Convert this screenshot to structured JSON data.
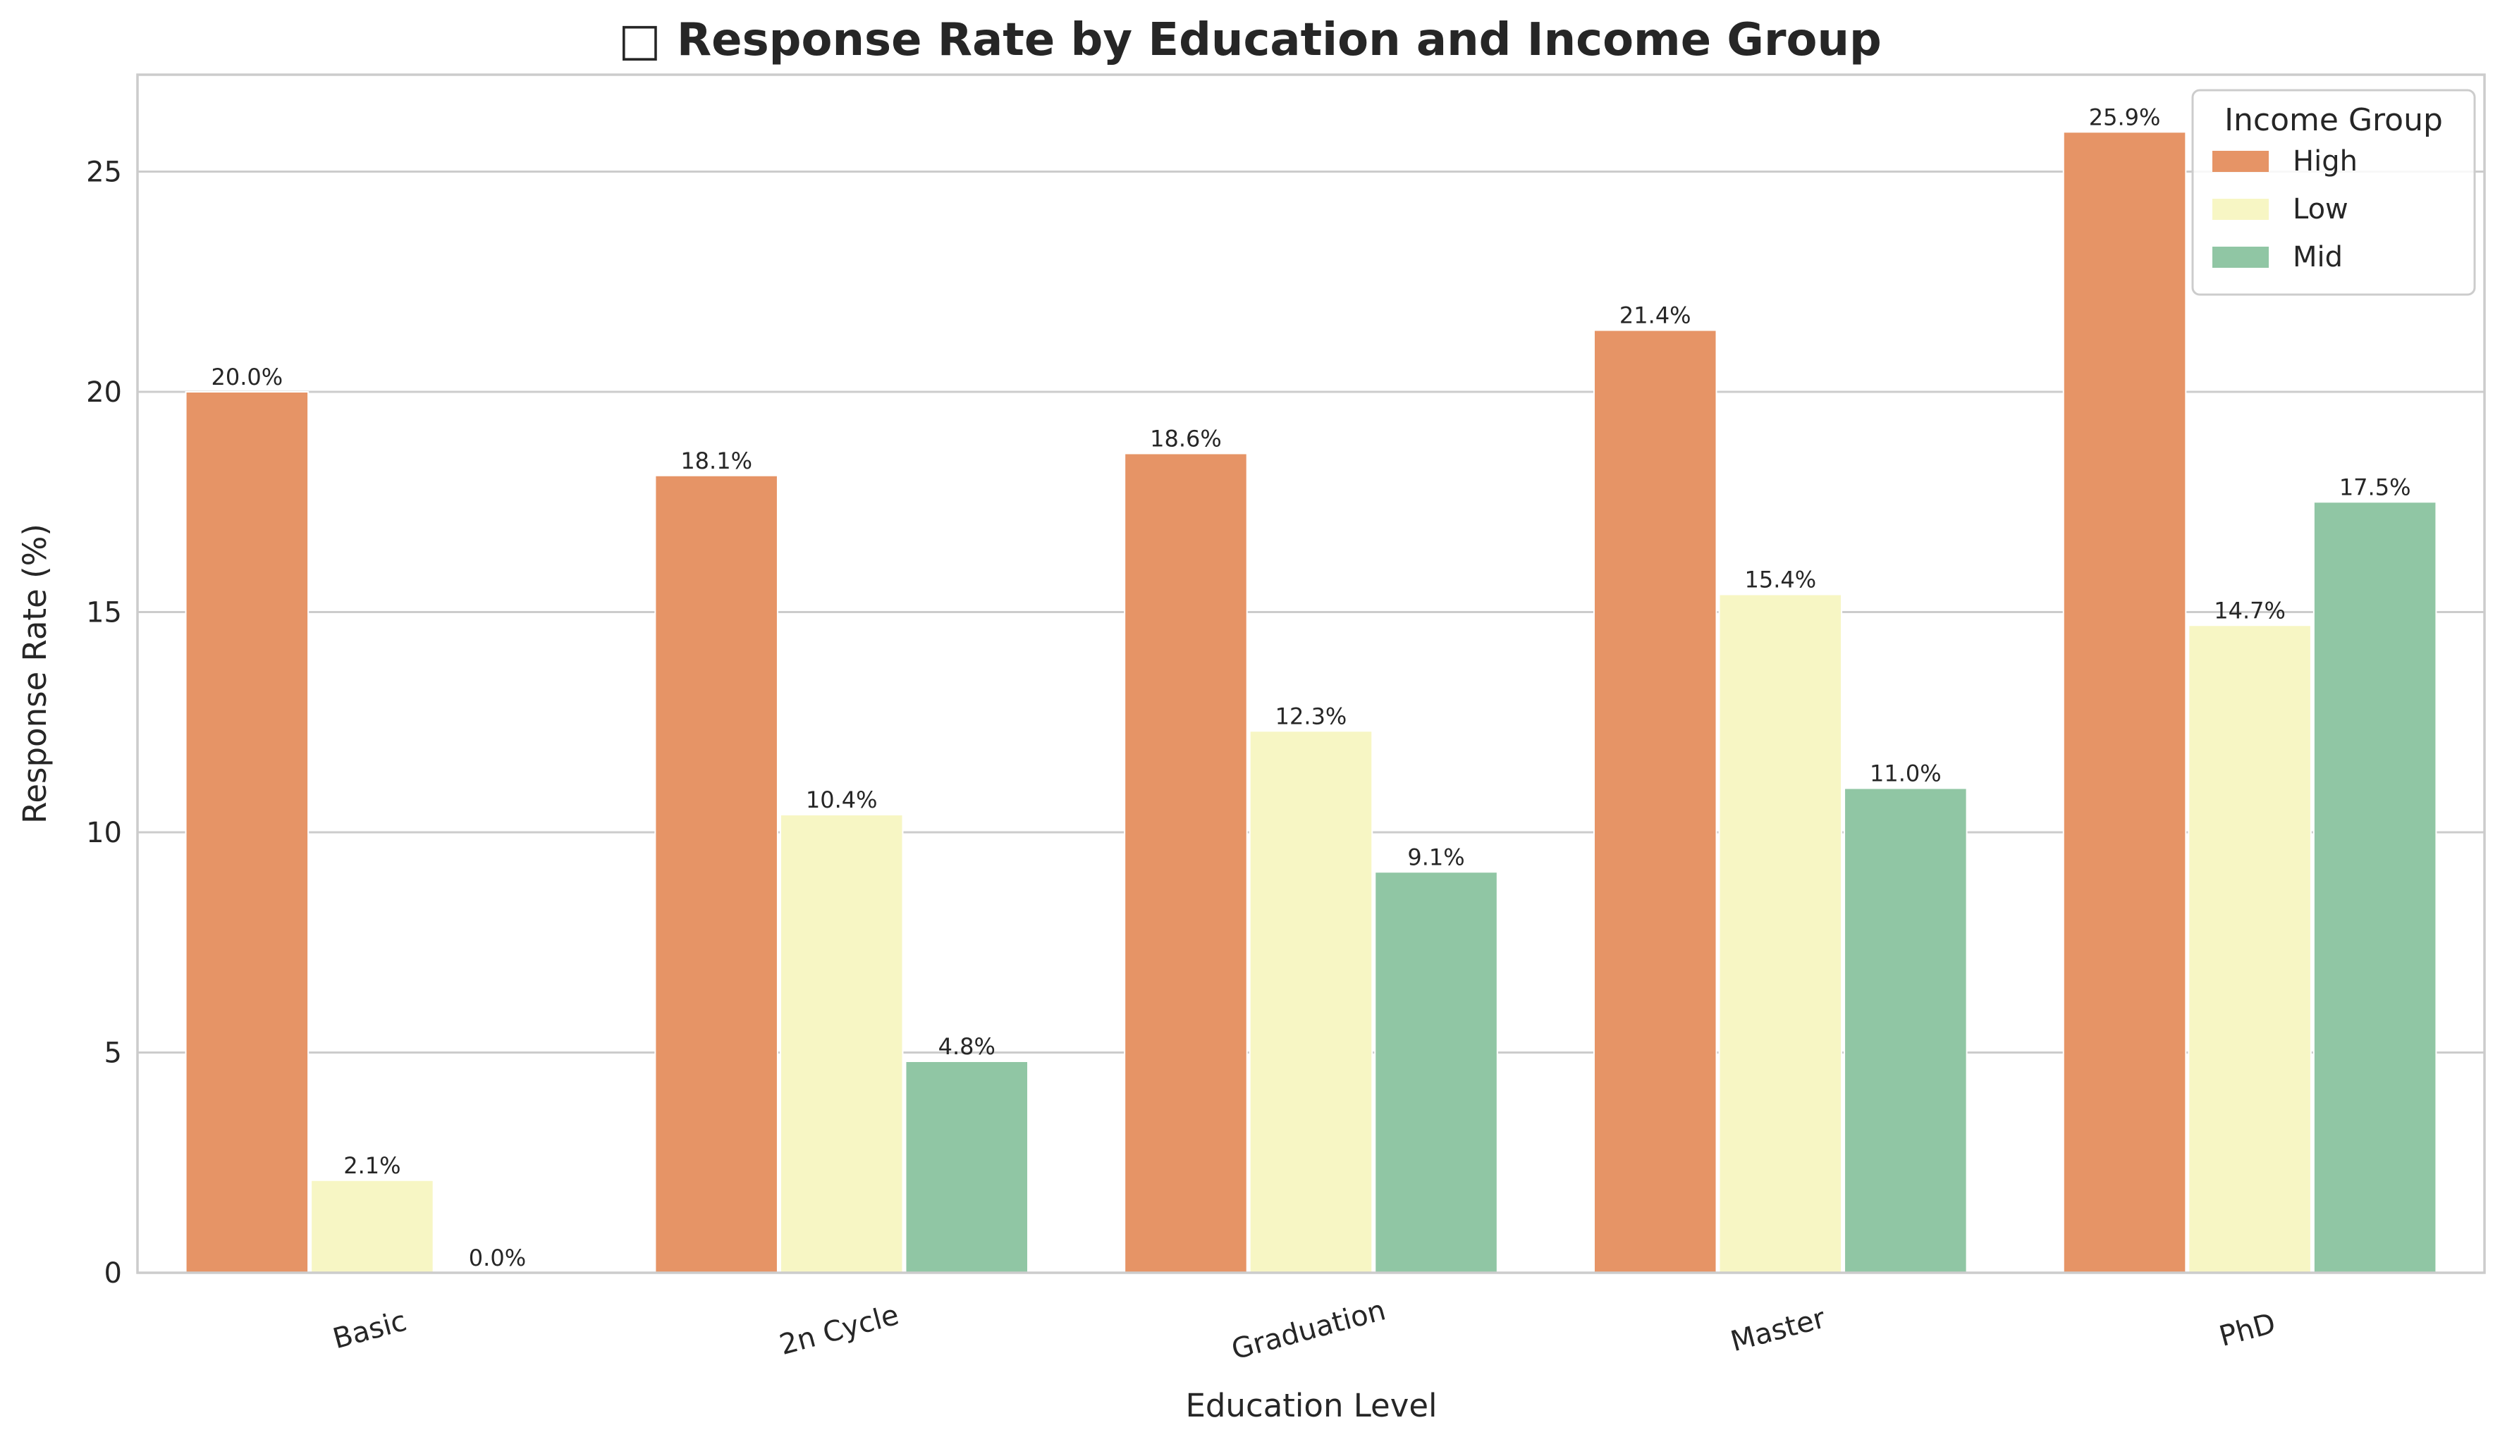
{
  "chart_data": {
    "type": "bar",
    "title": "□ Response Rate by Education and Income Group",
    "xlabel": "Education Level",
    "ylabel": "Response Rate (%)",
    "ylim": [
      0,
      27.2
    ],
    "yticks": [
      0,
      5,
      10,
      15,
      20,
      25
    ],
    "grid": "horizontal",
    "legend_title": "Income Group",
    "legend_position": "top-right",
    "categories": [
      "Basic",
      "2n Cycle",
      "Graduation",
      "Master",
      "PhD"
    ],
    "series": [
      {
        "name": "High",
        "color": "#e69466",
        "values": [
          20.0,
          18.1,
          18.6,
          21.4,
          25.9
        ],
        "labels": [
          "20.0%",
          "18.1%",
          "18.6%",
          "21.4%",
          "25.9%"
        ]
      },
      {
        "name": "Low",
        "color": "#f7f6c4",
        "values": [
          2.1,
          10.4,
          12.3,
          15.4,
          14.7
        ],
        "labels": [
          "2.1%",
          "10.4%",
          "12.3%",
          "15.4%",
          "14.7%"
        ]
      },
      {
        "name": "Mid",
        "color": "#90c6a4",
        "values": [
          0.0,
          4.8,
          9.1,
          11.0,
          17.5
        ],
        "labels": [
          "0.0%",
          "4.8%",
          "9.1%",
          "11.0%",
          "17.5%"
        ]
      }
    ]
  }
}
